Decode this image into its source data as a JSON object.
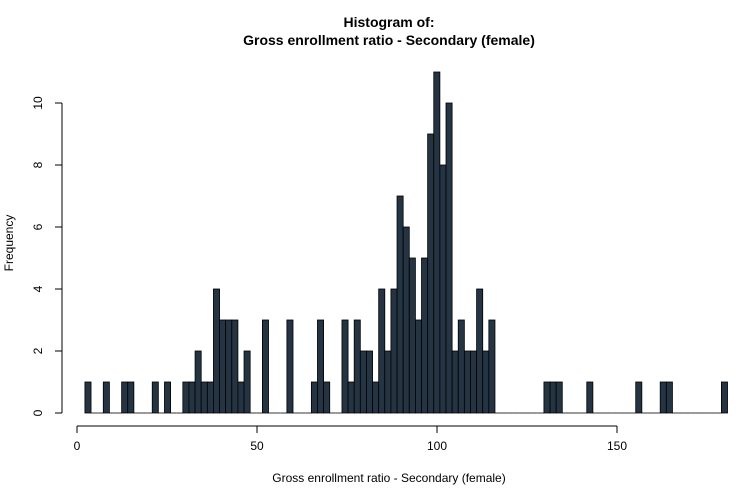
{
  "chart_data": {
    "type": "histogram",
    "title_line1": "Histogram of:",
    "title_line2": "Gross enrollment ratio - Secondary (female)",
    "xlabel": "Gross enrollment ratio - Secondary (female)",
    "ylabel": "Frequency",
    "bin_width": 1.7,
    "bin_start": 2.2,
    "xlim": [
      0,
      172
    ],
    "ylim": [
      0,
      11
    ],
    "x_ticks": [
      "0",
      "50",
      "100",
      "150"
    ],
    "x_tick_values": [
      0,
      50,
      100,
      150
    ],
    "y_ticks": [
      "0",
      "2",
      "4",
      "6",
      "8",
      "10"
    ],
    "y_tick_values": [
      0,
      2,
      4,
      6,
      8,
      10
    ],
    "counts": [
      1,
      0,
      0,
      1,
      0,
      0,
      1,
      1,
      0,
      0,
      0,
      1,
      0,
      1,
      0,
      0,
      1,
      1,
      2,
      1,
      1,
      4,
      3,
      3,
      3,
      1,
      2,
      0,
      0,
      3,
      0,
      0,
      0,
      3,
      0,
      0,
      0,
      1,
      3,
      1,
      0,
      0,
      3,
      1,
      3,
      2,
      2,
      1,
      4,
      2,
      4,
      7,
      6,
      5,
      3,
      5,
      9,
      11,
      8,
      10,
      2,
      3,
      2,
      2,
      4,
      2,
      3,
      0,
      0,
      0,
      0,
      0,
      0,
      0,
      0,
      1,
      1,
      1,
      0,
      0,
      0,
      0,
      1,
      0,
      0,
      0,
      0,
      0,
      0,
      0,
      1,
      0,
      0,
      0,
      1,
      1,
      0,
      0,
      0,
      0,
      0,
      0,
      0,
      0,
      1
    ],
    "bar_color": "#253443",
    "bar_edge_color": "#000000"
  }
}
